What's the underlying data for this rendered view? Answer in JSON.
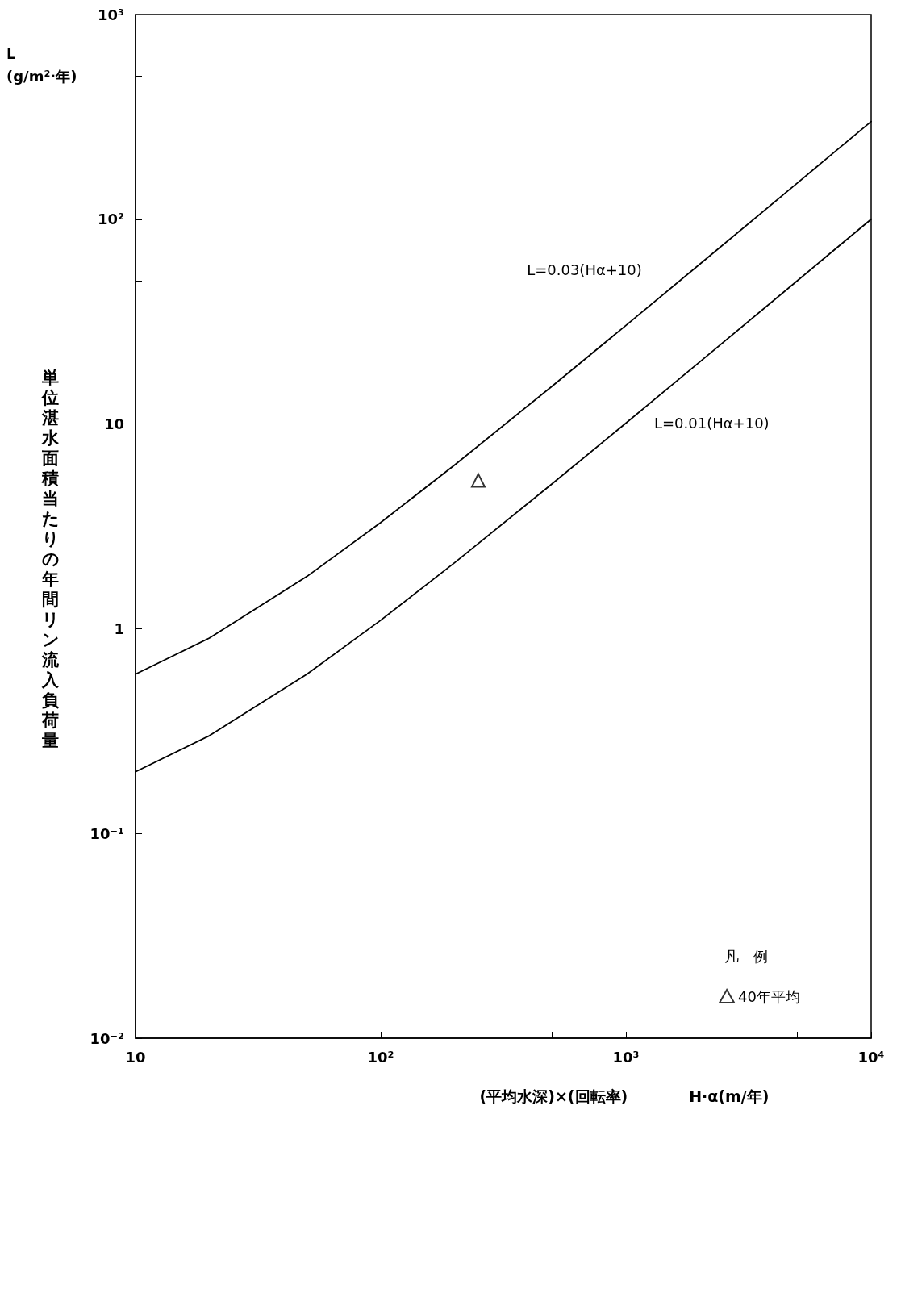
{
  "chart_data": {
    "type": "line",
    "xlabel": "(平均水深)×(回転率)　　　　H·α(m/年)",
    "ylabel": "単位湛水面積当たりの年間リン流入負荷量",
    "legend_title": "凡　例",
    "annotations": [
      "L\n(g/m²·年)"
    ],
    "x": [
      10,
      20,
      50,
      100,
      200,
      500,
      1000,
      2000,
      5000,
      10000
    ],
    "series": [
      {
        "name": "L=0.03(Hα+10)",
        "color": "#000000",
        "marker": "none",
        "values": [
          0.6,
          0.9,
          1.8,
          3.3,
          6.3,
          15.3,
          30.3,
          60.3,
          150.3,
          300.3
        ]
      },
      {
        "name": "L=0.01(Hα+10)",
        "color": "#000000",
        "marker": "none",
        "values": [
          0.2,
          0.3,
          0.6,
          1.1,
          2.1,
          5.1,
          10.1,
          20.1,
          50.1,
          100.1
        ]
      },
      {
        "name": "40年平均",
        "type": "scatter",
        "color": "#000000",
        "x": [
          250
        ],
        "values": [
          5.3
        ]
      }
    ],
    "xlim": [
      10,
      10000
    ],
    "ylim": [
      0.01,
      1000
    ],
    "xticks": [
      10,
      {
        "value": 50,
        "label": null
      },
      {
        "value": 100,
        "label": "10²"
      },
      {
        "value": 500,
        "label": null
      },
      {
        "value": 1000,
        "label": "10³"
      },
      {
        "value": 5000,
        "label": null
      },
      {
        "value": 10000,
        "label": "10⁴"
      }
    ],
    "yticks": [
      {
        "value": 0.01,
        "label": "10⁻²"
      },
      {
        "value": 0.05,
        "label": null
      },
      {
        "value": 0.1,
        "label": "10⁻¹"
      },
      {
        "value": 0.5,
        "label": null
      },
      1,
      {
        "value": 5,
        "label": null
      },
      10,
      {
        "value": 50,
        "label": null
      },
      {
        "value": 100,
        "label": "10²"
      },
      {
        "value": 500,
        "label": null
      },
      {
        "value": 1000,
        "label": "10³"
      }
    ],
    "log": "xy",
    "grid": false,
    "legend": "bottom right",
    "marker": "triangle",
    "line_style": "solid"
  }
}
